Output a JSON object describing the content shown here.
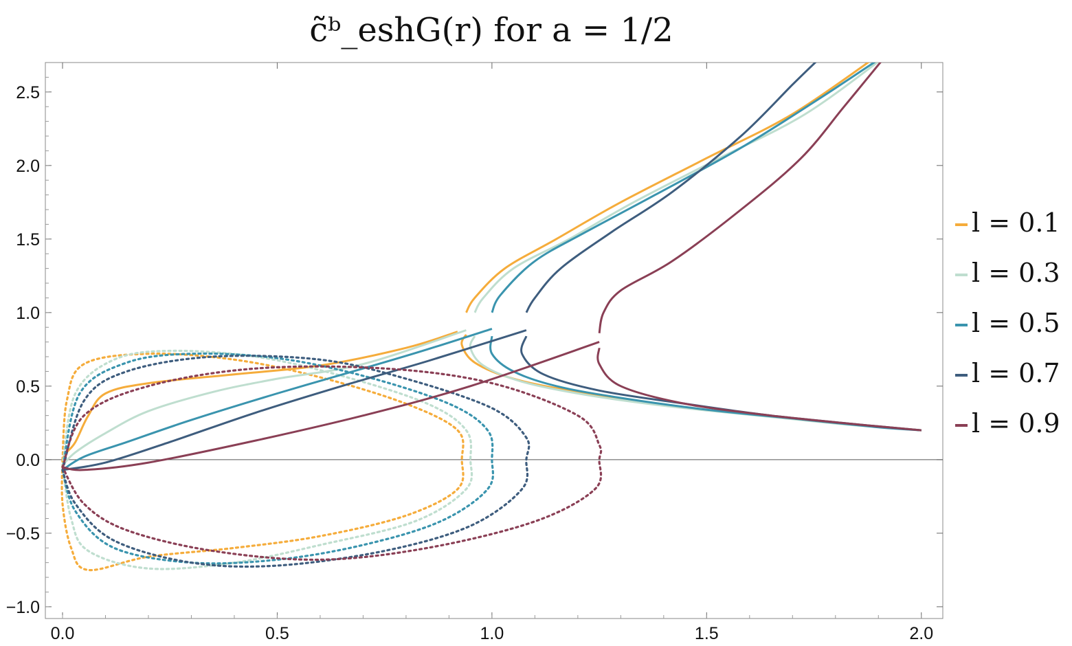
{
  "chart_data": {
    "type": "line",
    "title": "c̃ᵇ_eshG(r)   for   a = 1/2",
    "xlabel": "",
    "ylabel": "",
    "xlim": [
      -0.04,
      2.05
    ],
    "ylim": [
      -1.08,
      2.7
    ],
    "xticks": [
      "0.0",
      "0.5",
      "1.0",
      "1.5",
      "2.0"
    ],
    "xtick_values": [
      0,
      0.5,
      1.0,
      1.5,
      2.0
    ],
    "yticks": [
      "-1.0",
      "-0.5",
      "0.0",
      "0.5",
      "1.0",
      "1.5",
      "2.0",
      "2.5"
    ],
    "ytick_values": [
      -1.0,
      -0.5,
      0.0,
      0.5,
      1.0,
      1.5,
      2.0,
      2.5
    ],
    "legend_position": "right",
    "grid": false,
    "series": [
      {
        "name": "l = 0.1",
        "color": "#F5AC3B",
        "solid_lower": [
          [
            0.0,
            0.0
          ],
          [
            0.01,
            0.05
          ],
          [
            0.03,
            0.12
          ],
          [
            0.06,
            0.3
          ],
          [
            0.1,
            0.45
          ],
          [
            0.2,
            0.52
          ],
          [
            0.4,
            0.58
          ],
          [
            0.6,
            0.64
          ],
          [
            0.8,
            0.76
          ],
          [
            0.92,
            0.87
          ]
        ],
        "solid_upper": [
          [
            0.94,
            1.0
          ],
          [
            0.96,
            1.1
          ],
          [
            1.03,
            1.3
          ],
          [
            1.15,
            1.5
          ],
          [
            1.3,
            1.75
          ],
          [
            1.5,
            2.05
          ],
          [
            1.7,
            2.35
          ],
          [
            1.9,
            2.75
          ]
        ],
        "solid_tail": [
          [
            0.94,
            0.85
          ],
          [
            0.93,
            0.78
          ],
          [
            0.96,
            0.66
          ],
          [
            1.05,
            0.55
          ],
          [
            1.2,
            0.46
          ],
          [
            1.4,
            0.37
          ],
          [
            1.6,
            0.31
          ],
          [
            1.8,
            0.25
          ],
          [
            2.0,
            0.2
          ]
        ],
        "dotted": [
          [
            0.0,
            0.0
          ],
          [
            0.01,
            0.4
          ],
          [
            0.05,
            0.65
          ],
          [
            0.2,
            0.72
          ],
          [
            0.4,
            0.68
          ],
          [
            0.6,
            0.56
          ],
          [
            0.8,
            0.38
          ],
          [
            0.92,
            0.2
          ],
          [
            0.93,
            0.0
          ],
          [
            0.92,
            -0.2
          ],
          [
            0.8,
            -0.38
          ],
          [
            0.6,
            -0.52
          ],
          [
            0.4,
            -0.6
          ],
          [
            0.2,
            -0.66
          ],
          [
            0.06,
            -0.75
          ],
          [
            0.02,
            -0.6
          ],
          [
            0.0,
            -0.3
          ],
          [
            0.0,
            0.0
          ]
        ]
      },
      {
        "name": "l = 0.3",
        "color": "#BFDECF",
        "solid_lower": [
          [
            0.0,
            -0.04
          ],
          [
            0.03,
            0.05
          ],
          [
            0.1,
            0.18
          ],
          [
            0.2,
            0.33
          ],
          [
            0.35,
            0.46
          ],
          [
            0.5,
            0.55
          ],
          [
            0.7,
            0.65
          ],
          [
            0.94,
            0.88
          ]
        ],
        "solid_upper": [
          [
            0.96,
            1.0
          ],
          [
            0.98,
            1.1
          ],
          [
            1.05,
            1.3
          ],
          [
            1.18,
            1.5
          ],
          [
            1.33,
            1.75
          ],
          [
            1.53,
            2.05
          ],
          [
            1.73,
            2.35
          ],
          [
            1.92,
            2.75
          ]
        ],
        "solid_tail": [
          [
            0.96,
            0.84
          ],
          [
            0.95,
            0.76
          ],
          [
            0.98,
            0.64
          ],
          [
            1.07,
            0.53
          ],
          [
            1.22,
            0.44
          ],
          [
            1.42,
            0.36
          ],
          [
            1.62,
            0.3
          ],
          [
            1.82,
            0.24
          ],
          [
            2.0,
            0.2
          ]
        ],
        "dotted": [
          [
            0.0,
            -0.04
          ],
          [
            0.03,
            0.45
          ],
          [
            0.12,
            0.68
          ],
          [
            0.25,
            0.74
          ],
          [
            0.45,
            0.7
          ],
          [
            0.65,
            0.57
          ],
          [
            0.85,
            0.38
          ],
          [
            0.94,
            0.2
          ],
          [
            0.95,
            0.0
          ],
          [
            0.94,
            -0.2
          ],
          [
            0.82,
            -0.42
          ],
          [
            0.6,
            -0.58
          ],
          [
            0.4,
            -0.7
          ],
          [
            0.2,
            -0.74
          ],
          [
            0.06,
            -0.62
          ],
          [
            0.02,
            -0.4
          ],
          [
            0.0,
            -0.04
          ]
        ]
      },
      {
        "name": "l = 0.5",
        "color": "#3A94AE",
        "solid_lower": [
          [
            0.0,
            -0.07
          ],
          [
            0.05,
            0.02
          ],
          [
            0.15,
            0.12
          ],
          [
            0.3,
            0.27
          ],
          [
            0.5,
            0.45
          ],
          [
            0.7,
            0.62
          ],
          [
            0.85,
            0.75
          ],
          [
            1.0,
            0.89
          ]
        ],
        "solid_upper": [
          [
            1.0,
            1.0
          ],
          [
            1.02,
            1.12
          ],
          [
            1.1,
            1.35
          ],
          [
            1.22,
            1.55
          ],
          [
            1.38,
            1.8
          ],
          [
            1.58,
            2.12
          ],
          [
            1.76,
            2.45
          ],
          [
            1.9,
            2.72
          ]
        ],
        "solid_tail": [
          [
            1.0,
            0.84
          ],
          [
            1.0,
            0.72
          ],
          [
            1.05,
            0.6
          ],
          [
            1.15,
            0.5
          ],
          [
            1.3,
            0.42
          ],
          [
            1.5,
            0.34
          ],
          [
            1.7,
            0.28
          ],
          [
            1.9,
            0.22
          ],
          [
            2.0,
            0.2
          ]
        ],
        "dotted": [
          [
            0.0,
            -0.07
          ],
          [
            0.04,
            0.45
          ],
          [
            0.15,
            0.66
          ],
          [
            0.3,
            0.72
          ],
          [
            0.5,
            0.69
          ],
          [
            0.7,
            0.57
          ],
          [
            0.9,
            0.38
          ],
          [
            0.99,
            0.2
          ],
          [
            1.0,
            0.0
          ],
          [
            0.99,
            -0.2
          ],
          [
            0.88,
            -0.42
          ],
          [
            0.7,
            -0.58
          ],
          [
            0.5,
            -0.68
          ],
          [
            0.3,
            -0.7
          ],
          [
            0.12,
            -0.6
          ],
          [
            0.03,
            -0.35
          ],
          [
            0.0,
            -0.07
          ]
        ]
      },
      {
        "name": "l = 0.7",
        "color": "#3E5D7E",
        "solid_lower": [
          [
            0.0,
            -0.07
          ],
          [
            0.1,
            -0.02
          ],
          [
            0.25,
            0.12
          ],
          [
            0.45,
            0.32
          ],
          [
            0.65,
            0.5
          ],
          [
            0.85,
            0.67
          ],
          [
            1.08,
            0.88
          ]
        ],
        "solid_upper": [
          [
            1.08,
            1.0
          ],
          [
            1.1,
            1.1
          ],
          [
            1.16,
            1.3
          ],
          [
            1.28,
            1.55
          ],
          [
            1.42,
            1.82
          ],
          [
            1.58,
            2.2
          ],
          [
            1.7,
            2.55
          ],
          [
            1.76,
            2.72
          ]
        ],
        "solid_tail": [
          [
            1.08,
            0.84
          ],
          [
            1.07,
            0.72
          ],
          [
            1.12,
            0.58
          ],
          [
            1.25,
            0.47
          ],
          [
            1.45,
            0.38
          ],
          [
            1.65,
            0.3
          ],
          [
            1.85,
            0.24
          ],
          [
            2.0,
            0.2
          ]
        ],
        "dotted": [
          [
            0.0,
            -0.07
          ],
          [
            0.05,
            0.4
          ],
          [
            0.15,
            0.6
          ],
          [
            0.35,
            0.7
          ],
          [
            0.6,
            0.68
          ],
          [
            0.8,
            0.55
          ],
          [
            1.0,
            0.35
          ],
          [
            1.08,
            0.15
          ],
          [
            1.08,
            0.0
          ],
          [
            1.07,
            -0.2
          ],
          [
            0.95,
            -0.45
          ],
          [
            0.75,
            -0.62
          ],
          [
            0.5,
            -0.72
          ],
          [
            0.3,
            -0.7
          ],
          [
            0.12,
            -0.55
          ],
          [
            0.03,
            -0.3
          ],
          [
            0.0,
            -0.07
          ]
        ]
      },
      {
        "name": "l = 0.9",
        "color": "#8A3F55",
        "solid_lower": [
          [
            0.0,
            -0.05
          ],
          [
            0.05,
            -0.07
          ],
          [
            0.2,
            -0.02
          ],
          [
            0.45,
            0.13
          ],
          [
            0.7,
            0.3
          ],
          [
            0.95,
            0.5
          ],
          [
            1.25,
            0.8
          ]
        ],
        "solid_upper": [
          [
            1.25,
            0.86
          ],
          [
            1.26,
            1.0
          ],
          [
            1.3,
            1.15
          ],
          [
            1.42,
            1.35
          ],
          [
            1.58,
            1.7
          ],
          [
            1.72,
            2.05
          ],
          [
            1.82,
            2.4
          ],
          [
            1.91,
            2.72
          ]
        ],
        "solid_tail": [
          [
            1.25,
            0.76
          ],
          [
            1.25,
            0.65
          ],
          [
            1.3,
            0.5
          ],
          [
            1.45,
            0.38
          ],
          [
            1.65,
            0.3
          ],
          [
            1.85,
            0.24
          ],
          [
            2.0,
            0.2
          ]
        ],
        "dotted": [
          [
            0.0,
            -0.05
          ],
          [
            0.05,
            0.3
          ],
          [
            0.2,
            0.5
          ],
          [
            0.45,
            0.62
          ],
          [
            0.75,
            0.62
          ],
          [
            1.0,
            0.52
          ],
          [
            1.2,
            0.3
          ],
          [
            1.25,
            0.1
          ],
          [
            1.25,
            0.0
          ],
          [
            1.24,
            -0.2
          ],
          [
            1.1,
            -0.42
          ],
          [
            0.85,
            -0.6
          ],
          [
            0.6,
            -0.68
          ],
          [
            0.35,
            -0.62
          ],
          [
            0.15,
            -0.48
          ],
          [
            0.05,
            -0.3
          ],
          [
            0.0,
            -0.05
          ]
        ]
      }
    ]
  }
}
